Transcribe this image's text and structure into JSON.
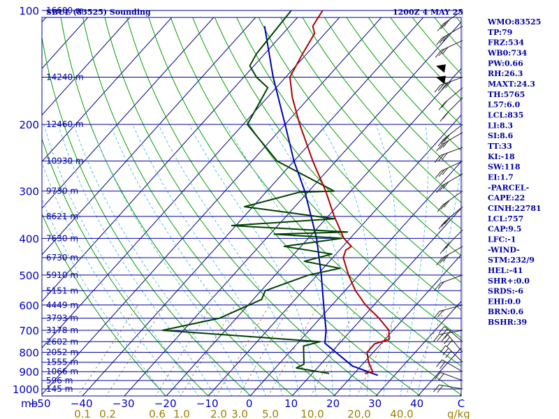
{
  "header": {
    "station": "SBUL (83525) Sounding",
    "time": "1200Z  4 MAY 25"
  },
  "indices": [
    "WMO:83525",
    "TP:79",
    "FRZ:534",
    "WB0:734",
    "PW:0.66",
    "RH:26.3",
    "MAXT:24.3",
    "TH:5765",
    "L57:6.0",
    "LCL:835",
    "LI:8.3",
    "SI:8.6",
    "TT:33",
    "KI:-18",
    "SW:118",
    "EI:1.7",
    "-PARCEL-",
    "CAPE:22",
    "CINH:22781",
    "LCL:757",
    "CAP:9.5",
    "LFC:-1",
    "-WIND-",
    "STM:232/9",
    "HEL:-41",
    "SHR+:0.0",
    "SRDS:-6",
    "EHI:0.0",
    "BRN:0.6",
    "BSHR:39"
  ],
  "colors": {
    "isobar": "#0000a0",
    "isotherm": "#000080",
    "dry_adiabat": "#00a000",
    "moist_adiabat": "#60c0e0",
    "mixing_ratio": "#a09050",
    "temperature": "#b00000",
    "dewpoint": "#004000",
    "parcel": "#0000b0",
    "wind": "#202020"
  },
  "chart_data": {
    "type": "skew-t",
    "y_axis_unit": "mb",
    "x_axis_unit": "C",
    "mixing_ratio_unit": "g/kg",
    "pressure_levels": [
      100,
      200,
      300,
      400,
      500,
      600,
      700,
      800,
      900,
      1000
    ],
    "pressure_labels": [
      "100",
      "200",
      "300",
      "400",
      "500",
      "600",
      "700",
      "800",
      "900",
      "1000"
    ],
    "temperature_ticks": [
      -50,
      -40,
      -30,
      -20,
      -10,
      0,
      10,
      20,
      30,
      40
    ],
    "temperature_labels": [
      "−50",
      "−40",
      "−30",
      "−20",
      "−10",
      "0",
      "10",
      "20",
      "30",
      "40"
    ],
    "xlim_c": [
      -50,
      50
    ],
    "ylim_mb": [
      1050,
      100
    ],
    "mixing_ratio_ticks": [
      0.1,
      0.2,
      0.6,
      1.0,
      2.0,
      3.0,
      5.0,
      10.0,
      20.0,
      40.0
    ],
    "mixing_ratio_labels": [
      "0.1",
      "0.2",
      "0.6",
      "1.0",
      "2.0",
      "3.0",
      "5.0",
      "10.0",
      "20.0",
      "40.0"
    ],
    "height_levels": [
      {
        "p": 100,
        "label": "16600 m"
      },
      {
        "p": 150,
        "label": "14240 m"
      },
      {
        "p": 200,
        "label": "12460 m"
      },
      {
        "p": 250,
        "label": "10930 m"
      },
      {
        "p": 300,
        "label": "9730 m"
      },
      {
        "p": 350,
        "label": "8621 m"
      },
      {
        "p": 400,
        "label": "7630 m"
      },
      {
        "p": 450,
        "label": "6730 m"
      },
      {
        "p": 500,
        "label": "5910 m"
      },
      {
        "p": 550,
        "label": "5151 m"
      },
      {
        "p": 600,
        "label": "4449 m"
      },
      {
        "p": 650,
        "label": "3793 m"
      },
      {
        "p": 700,
        "label": "3178 m"
      },
      {
        "p": 750,
        "label": "2602 m"
      },
      {
        "p": 800,
        "label": "2052 m"
      },
      {
        "p": 850,
        "label": "1555 m"
      },
      {
        "p": 900,
        "label": "1066 m"
      },
      {
        "p": 950,
        "label": "596 m"
      },
      {
        "p": 1000,
        "label": "145 m"
      }
    ],
    "temperature": [
      {
        "p": 910,
        "t": 22.5
      },
      {
        "p": 900,
        "t": 24.0
      },
      {
        "p": 850,
        "t": 21.0
      },
      {
        "p": 800,
        "t": 18.5
      },
      {
        "p": 760,
        "t": 18.5
      },
      {
        "p": 740,
        "t": 21.0
      },
      {
        "p": 700,
        "t": 19.0
      },
      {
        "p": 650,
        "t": 14.0
      },
      {
        "p": 600,
        "t": 8.0
      },
      {
        "p": 550,
        "t": 2.5
      },
      {
        "p": 500,
        "t": -2.5
      },
      {
        "p": 450,
        "t": -7.5
      },
      {
        "p": 430,
        "t": -8.5
      },
      {
        "p": 420,
        "t": -8.0
      },
      {
        "p": 400,
        "t": -11.5
      },
      {
        "p": 350,
        "t": -18.5
      },
      {
        "p": 300,
        "t": -26.0
      },
      {
        "p": 250,
        "t": -35.5
      },
      {
        "p": 200,
        "t": -46.5
      },
      {
        "p": 170,
        "t": -54.0
      },
      {
        "p": 150,
        "t": -59.0
      },
      {
        "p": 130,
        "t": -61.0
      },
      {
        "p": 115,
        "t": -62.5
      },
      {
        "p": 110,
        "t": -64.5
      },
      {
        "p": 100,
        "t": -65.5
      }
    ],
    "dewpoint": [
      {
        "p": 910,
        "t": 14.0
      },
      {
        "p": 880,
        "t": 5.0
      },
      {
        "p": 860,
        "t": 6.0
      },
      {
        "p": 770,
        "t": 2.0
      },
      {
        "p": 750,
        "t": 5.0
      },
      {
        "p": 700,
        "t": -35.0
      },
      {
        "p": 650,
        "t": -24.0
      },
      {
        "p": 580,
        "t": -18.0
      },
      {
        "p": 550,
        "t": -19.0
      },
      {
        "p": 500,
        "t": -12.0
      },
      {
        "p": 480,
        "t": -6.0
      },
      {
        "p": 460,
        "t": -16.0
      },
      {
        "p": 440,
        "t": -11.0
      },
      {
        "p": 420,
        "t": -24.0
      },
      {
        "p": 400,
        "t": -12.0
      },
      {
        "p": 390,
        "t": -29.0
      },
      {
        "p": 385,
        "t": -12.0
      },
      {
        "p": 370,
        "t": -41.0
      },
      {
        "p": 355,
        "t": -18.0
      },
      {
        "p": 330,
        "t": -42.0
      },
      {
        "p": 302,
        "t": -32.0
      },
      {
        "p": 300,
        "t": -24.0
      },
      {
        "p": 250,
        "t": -44.0
      },
      {
        "p": 200,
        "t": -59.0
      },
      {
        "p": 160,
        "t": -62.0
      },
      {
        "p": 150,
        "t": -67.0
      },
      {
        "p": 140,
        "t": -71.0
      },
      {
        "p": 130,
        "t": -72.0
      },
      {
        "p": 100,
        "t": -73.0
      }
    ],
    "parcel": [
      {
        "p": 920,
        "t": 26.0
      },
      {
        "p": 870,
        "t": 18.0
      },
      {
        "p": 757,
        "t": 6.5
      },
      {
        "p": 700,
        "t": 4.0
      },
      {
        "p": 600,
        "t": -2.0
      },
      {
        "p": 500,
        "t": -9.0
      },
      {
        "p": 400,
        "t": -18.0
      },
      {
        "p": 300,
        "t": -31.0
      },
      {
        "p": 250,
        "t": -40.0
      },
      {
        "p": 200,
        "t": -50.0
      },
      {
        "p": 150,
        "t": -63.0
      },
      {
        "p": 110,
        "t": -76.0
      }
    ]
  }
}
